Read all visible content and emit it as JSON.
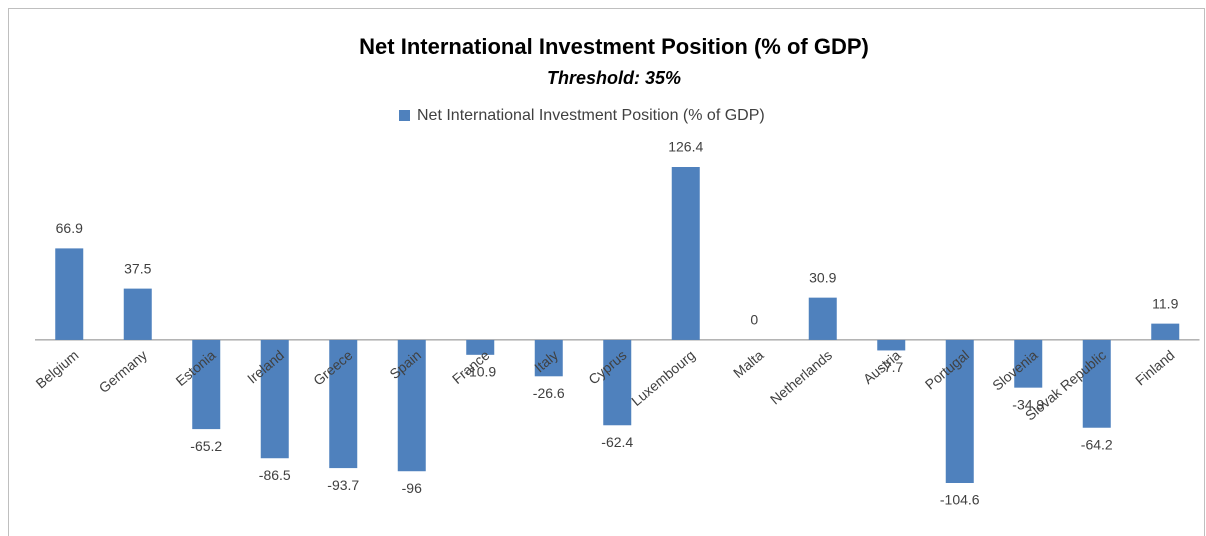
{
  "chart_data": {
    "type": "bar",
    "title": "Net International Investment Position (% of GDP)",
    "subtitle": "Threshold: 35%",
    "categories": [
      "Belgium",
      "Germany",
      "Estonia",
      "Ireland",
      "Greece",
      "Spain",
      "France",
      "Italy",
      "Cyprus",
      "Luxembourg",
      "Malta",
      "Netherlands",
      "Austria",
      "Portugal",
      "Slovenia",
      "Slovak Republic",
      "Finland"
    ],
    "series": [
      {
        "name": "Net International Investment Position (% of GDP)",
        "color": "#4f81bd",
        "values": [
          66.9,
          37.5,
          -65.2,
          -86.5,
          -93.7,
          -96,
          -10.9,
          -26.6,
          -62.4,
          126.4,
          0,
          30.9,
          -7.7,
          -104.6,
          -34.9,
          -64.2,
          11.9
        ]
      }
    ],
    "legend": "top"
  }
}
